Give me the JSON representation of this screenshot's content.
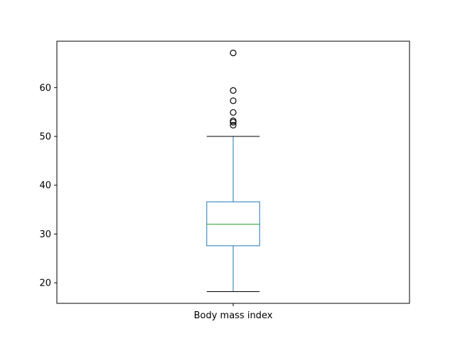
{
  "chart_data": {
    "type": "box",
    "categories": [
      "Body mass index"
    ],
    "series": [
      {
        "whisker_low": 18.2,
        "q1": 27.6,
        "median": 32.0,
        "q3": 36.6,
        "whisker_high": 50.0,
        "outliers": [
          52.3,
          52.9,
          53.2,
          54.9,
          57.3,
          59.4,
          67.1
        ]
      }
    ],
    "yticks": [
      20,
      30,
      40,
      50,
      60
    ],
    "ylim": [
      15.8,
      69.5
    ],
    "title": "",
    "xlabel": "",
    "ylabel": "",
    "grid": false,
    "colors": {
      "box": "#1f77b4",
      "median": "#2ca02c",
      "whisker_cap": "#000000",
      "outlier": "#000000",
      "axes": "#000000"
    }
  }
}
